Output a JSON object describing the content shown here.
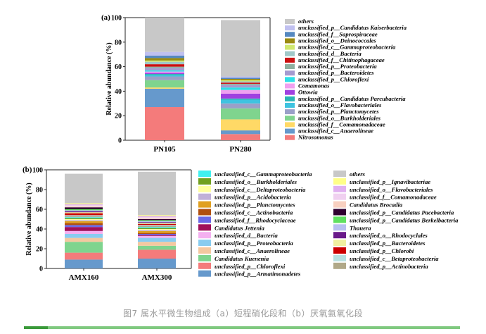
{
  "chart_data": [
    {
      "panel_label": "(a)",
      "type": "bar",
      "stacked": true,
      "categories": [
        "PN105",
        "PN280"
      ],
      "ylabel": "Relative abundance (%)",
      "ylim": [
        0,
        100
      ],
      "yticks": [
        "0",
        "20",
        "40",
        "60",
        "80",
        "100"
      ],
      "series": [
        {
          "name": "Nitrosomonas",
          "color": "#f47b7b",
          "values": [
            27,
            5
          ]
        },
        {
          "name": "unclassified_c__Anaerolineae",
          "color": "#6699cc",
          "values": [
            15,
            3
          ]
        },
        {
          "name": "unclassified_f__Comamonadaceae",
          "color": "#ffd966",
          "values": [
            1,
            9
          ]
        },
        {
          "name": "unclassified_o__Burkholderiales",
          "color": "#7fd48e",
          "values": [
            6,
            9
          ]
        },
        {
          "name": "unclassified_p__Planctomycetes",
          "color": "#9aa0c8",
          "values": [
            3,
            4
          ]
        },
        {
          "name": "unclassified_o__Flavobacteriales",
          "color": "#3fc3e0",
          "values": [
            1,
            3
          ]
        },
        {
          "name": "unclassified_p__Candidatus_Parcubacteria",
          "color": "#2ab5b5",
          "values": [
            1,
            1
          ]
        },
        {
          "name": "Ottowia",
          "color": "#a040e0",
          "values": [
            1,
            4
          ]
        },
        {
          "name": "Comamonas",
          "color": "#f0a0f0",
          "values": [
            1,
            3
          ]
        },
        {
          "name": "unclassified_p__Chloroflexi",
          "color": "#2ee0e8",
          "values": [
            1,
            2
          ]
        },
        {
          "name": "unclassified_p__Bacteroidetes",
          "color": "#a59ad0",
          "values": [
            2,
            2
          ]
        },
        {
          "name": "unclassified_p__Proteobacteria",
          "color": "#8fb0a0",
          "values": [
            1,
            1
          ]
        },
        {
          "name": "unclassified_f__Chitinophagaceae",
          "color": "#cc1111",
          "values": [
            2,
            1
          ]
        },
        {
          "name": "unclassified_d__Bacteria",
          "color": "#a0c8c8",
          "values": [
            2,
            1
          ]
        },
        {
          "name": "unclassified_c__Gammaproteobacteria",
          "color": "#d0e870",
          "values": [
            1,
            1
          ]
        },
        {
          "name": "unclassified_o__Deinococcales",
          "color": "#9a8a10",
          "values": [
            2,
            1
          ]
        },
        {
          "name": "unclassified_f__Saprospiraceae",
          "color": "#5588c0",
          "values": [
            2,
            1
          ]
        },
        {
          "name": "unclassified_p__Candidatus_Kaiserbacteria",
          "color": "#c0c0f0",
          "values": [
            3,
            1
          ]
        },
        {
          "name": "others",
          "color": "#c8c8c8",
          "values": [
            28,
            46
          ]
        }
      ],
      "legend_order": [
        "others",
        "unclassified_p__Candidatus_Kaiserbacteria",
        "unclassified_f__Saprospiraceae",
        "unclassified_o__Deinococcales",
        "unclassified_c__Gammaproteobacteria",
        "unclassified_d__Bacteria",
        "unclassified_f__Chitinophagaceae",
        "unclassified_p__Proteobacteria",
        "unclassified_p__Bacteroidetes",
        "unclassified_p__Chloroflexi",
        "Comamonas",
        "Ottowia",
        "unclassified_p__Candidatus_Parcubacteria",
        "unclassified_o__Flavobacteriales",
        "unclassified_p__Planctomycetes",
        "unclassified_o__Burkholderiales",
        "unclassified_f__Comamonadaceae",
        "unclassified_c__Anaerolineae",
        "Nitrosomonas"
      ]
    },
    {
      "panel_label": "(b)",
      "type": "bar",
      "stacked": true,
      "categories": [
        "AMX160",
        "AMX300"
      ],
      "ylabel": "Relative abundance (%)",
      "ylim": [
        0,
        100
      ],
      "yticks": [
        "0",
        "20",
        "40",
        "60",
        "80",
        "100"
      ],
      "series": [
        {
          "name": "unclassified_p__Armatimonadetes",
          "color": "#6699cc",
          "values": [
            9,
            10
          ]
        },
        {
          "name": "unclassified_p__Chloroflexi",
          "color": "#f47b7b",
          "values": [
            7,
            9
          ]
        },
        {
          "name": "Candidatus_Kuenenia",
          "color": "#7fd48e",
          "values": [
            11,
            4
          ]
        },
        {
          "name": "unclassified_c__Anaerolineae",
          "color": "#f4c8a0",
          "values": [
            4,
            4
          ]
        },
        {
          "name": "unclassified_p__Proteobacteria",
          "color": "#88ccf0",
          "values": [
            4,
            4
          ]
        },
        {
          "name": "unclassified_d__Bacteria",
          "color": "#f4b0f0",
          "values": [
            3,
            2
          ]
        },
        {
          "name": "Candidatus_Jettenia",
          "color": "#a0105a",
          "values": [
            4,
            1
          ]
        },
        {
          "name": "unclassified_f__Rhodocyclaceae",
          "color": "#6a6ae8",
          "values": [
            2,
            1
          ]
        },
        {
          "name": "unclassified_c__Actinobacteria",
          "color": "#b05010",
          "values": [
            2,
            1
          ]
        },
        {
          "name": "unclassified_p__Planctomycetes",
          "color": "#e0a020",
          "values": [
            2,
            2
          ]
        },
        {
          "name": "unclassified_p__Acidobacteria",
          "color": "#c0b0d8",
          "values": [
            1,
            1
          ]
        },
        {
          "name": "unclassified_c__Deltaproteobacteria",
          "color": "#ffffa0",
          "values": [
            1,
            1
          ]
        },
        {
          "name": "unclassified_o__Burkholderiales",
          "color": "#70a020",
          "values": [
            1,
            1
          ]
        },
        {
          "name": "unclassified_c__Gammaproteobacteria",
          "color": "#40f0f0",
          "values": [
            1,
            1
          ]
        },
        {
          "name": "unclassified_p__Actinobacteria",
          "color": "#b0a888",
          "values": [
            1,
            1
          ]
        },
        {
          "name": "unclassified_c__Betaproteobacteria",
          "color": "#b8e0e0",
          "values": [
            1,
            1
          ]
        },
        {
          "name": "unclassified_p__Chlorobi",
          "color": "#cc0000",
          "values": [
            2,
            1
          ]
        },
        {
          "name": "unclassified_p__Bacteroidetes",
          "color": "#f0f0a0",
          "values": [
            1,
            1
          ]
        },
        {
          "name": "unclassified_o__Rhodocyclales",
          "color": "#6a1a8a",
          "values": [
            1,
            1
          ]
        },
        {
          "name": "Thauera",
          "color": "#b8c0f0",
          "values": [
            1,
            1
          ]
        },
        {
          "name": "unclassified_p__Candidatus_Berkelbacteria",
          "color": "#60e060",
          "values": [
            1,
            1
          ]
        },
        {
          "name": "unclassified_p__Candidatus_Pacebacteria",
          "color": "#300030",
          "values": [
            2,
            1
          ]
        },
        {
          "name": "Candidatus_Brocadia",
          "color": "#f8d0c0",
          "values": [
            1,
            1
          ]
        },
        {
          "name": "unclassified_f__Comamonadaceae",
          "color": "#f0d0f0",
          "values": [
            1,
            1
          ]
        },
        {
          "name": "unclassified_o__Flavobacteriales",
          "color": "#e0b0f0",
          "values": [
            1,
            1
          ]
        },
        {
          "name": "unclassified_p__Ignavibacteriae",
          "color": "#ffff88",
          "values": [
            1,
            1
          ]
        },
        {
          "name": "others",
          "color": "#c8c8c8",
          "values": [
            30,
            44
          ]
        }
      ],
      "legend_col1": [
        "unclassified_c__Gammaproteobacteria",
        "unclassified_o__Burkholderiales",
        "unclassified_c__Deltaproteobacteria",
        "unclassified_p__Acidobacteria",
        "unclassified_p__Planctomycetes",
        "unclassified_c__Actinobacteria",
        "unclassified_f__Rhodocyclaceae",
        "Candidatus_Jettenia",
        "unclassified_d__Bacteria",
        "unclassified_p__Proteobacteria",
        "unclassified_c__Anaerolineae",
        "Candidatus_Kuenenia",
        "unclassified_p__Chloroflexi",
        "unclassified_p__Armatimonadetes"
      ],
      "legend_col2": [
        "others",
        "unclassified_p__Ignavibacteriae",
        "unclassified_o__Flavobacteriales",
        "unclassified_f__Comamonadaceae",
        "Candidatus_Brocadia",
        "unclassified_p__Candidatus_Pacebacteria",
        "unclassified_p__Candidatus_Berkelbacteria",
        "Thauera",
        "unclassified_o__Rhodocyclales",
        "unclassified_p__Bacteroidetes",
        "unclassified_p__Chlorobi",
        "unclassified_c__Betaproteobacteria",
        "unclassified_p__Actinobacteria"
      ]
    }
  ],
  "caption": "图7 属水平微生物组成（a）短程硝化段和（b）厌氧氨氧化段"
}
